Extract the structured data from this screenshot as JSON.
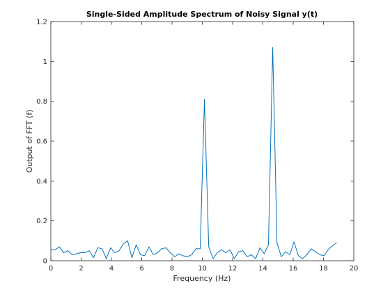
{
  "chart_data": {
    "type": "line",
    "title": "Single-Sided Amplitude Spectrum of Noisy Signal y(t)",
    "xlabel": "Frequency (Hz)",
    "ylabel": "Output of FFT (f)",
    "xlim": [
      0,
      20
    ],
    "ylim": [
      0,
      1.2
    ],
    "xticks": [
      0,
      2,
      4,
      6,
      8,
      10,
      12,
      14,
      16,
      18,
      20
    ],
    "xtick_labels": [
      "0",
      "2",
      "4",
      "6",
      "8",
      "10",
      "12",
      "14",
      "16",
      "18",
      "20"
    ],
    "yticks": [
      0,
      0.2,
      0.4,
      0.6,
      0.8,
      1,
      1.2
    ],
    "ytick_labels": [
      "0",
      "0.2",
      "0.4",
      "0.6",
      "0.8",
      "1",
      "1.2"
    ],
    "grid": false,
    "line_color": "#0072BD",
    "x_step": 0.2817,
    "y": [
      0.055,
      0.055,
      0.07,
      0.04,
      0.05,
      0.03,
      0.035,
      0.04,
      0.04,
      0.05,
      0.015,
      0.065,
      0.06,
      0.01,
      0.065,
      0.04,
      0.05,
      0.085,
      0.1,
      0.015,
      0.08,
      0.03,
      0.025,
      0.07,
      0.03,
      0.04,
      0.06,
      0.065,
      0.04,
      0.02,
      0.035,
      0.025,
      0.02,
      0.03,
      0.06,
      0.06,
      0.81,
      0.07,
      0.01,
      0.04,
      0.055,
      0.04,
      0.055,
      0.01,
      0.045,
      0.05,
      0.02,
      0.03,
      0.01,
      0.065,
      0.035,
      0.08,
      1.07,
      0.09,
      0.02,
      0.045,
      0.03,
      0.095,
      0.025,
      0.01,
      0.03,
      0.06,
      0.045,
      0.03,
      0.025,
      0.055,
      0.075,
      0.09
    ]
  }
}
